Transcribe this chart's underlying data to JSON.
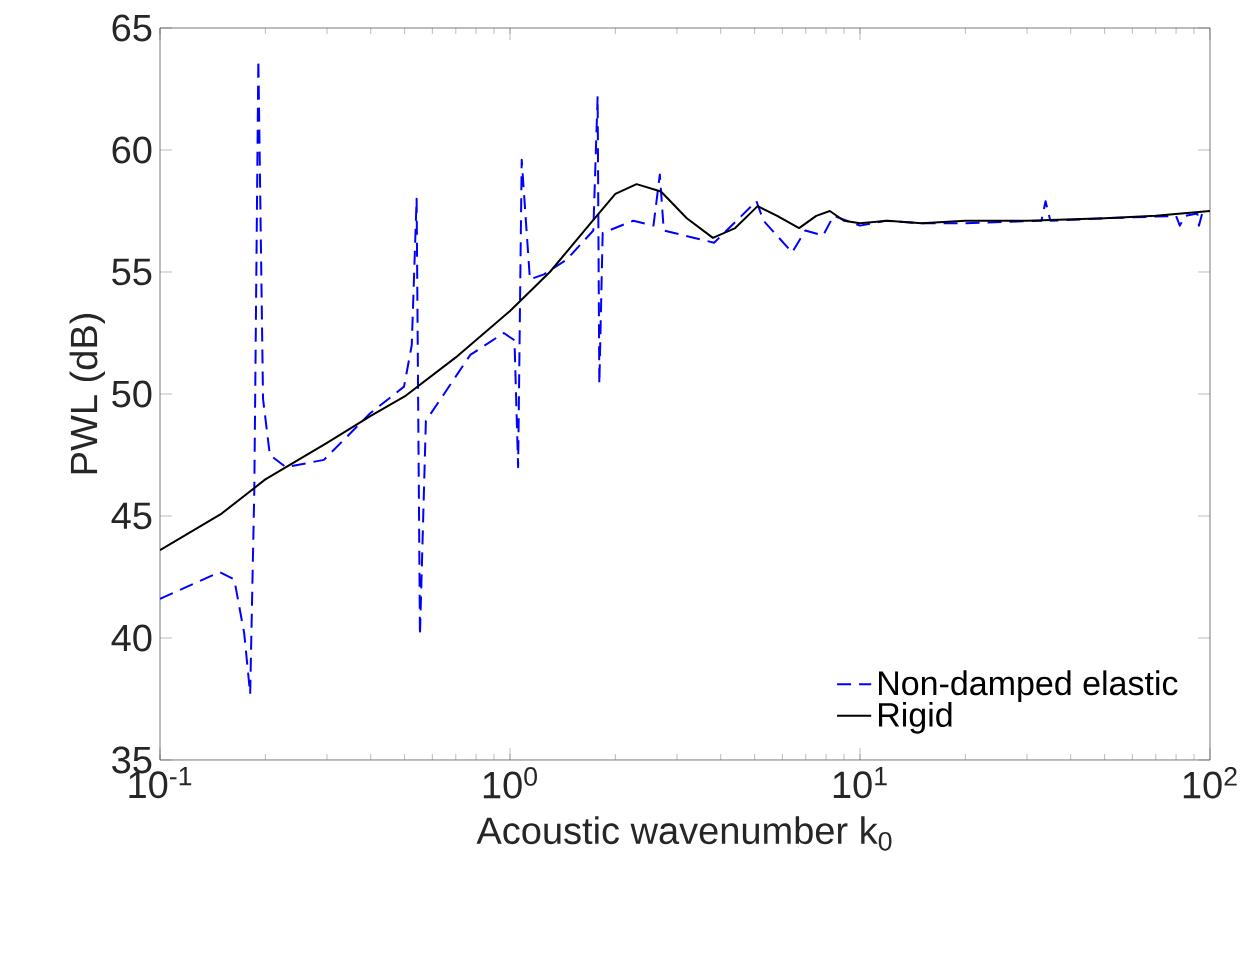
{
  "chart_data": {
    "type": "line",
    "xlabel": "Acoustic wavenumber k$_{0}$",
    "ylabel": "PWL (dB)",
    "log": "x",
    "xlim": [
      0.1,
      100
    ],
    "ylim": [
      35,
      65
    ],
    "xticks": [
      {
        "value": 0.1,
        "label": "10$^{-1}$"
      },
      {
        "value": 1,
        "label": "10$^{0}$"
      },
      {
        "value": 10,
        "label": "10$^{1}$"
      },
      {
        "value": 100,
        "label": "10$^{2}$"
      }
    ],
    "yticks": [
      35,
      40,
      45,
      50,
      55,
      60,
      65
    ],
    "grid": false,
    "legend": "bottom right",
    "marker": "none",
    "series": [
      {
        "name": "Non-damped elastic",
        "color": "#0000ff",
        "line_style": "dashed",
        "x": [
          0.1,
          0.148,
          0.163,
          0.174,
          0.181,
          0.186,
          0.191,
          0.197,
          0.206,
          0.229,
          0.294,
          0.398,
          0.498,
          0.524,
          0.541,
          0.553,
          0.575,
          0.648,
          0.77,
          0.96,
          1.03,
          1.055,
          1.08,
          1.14,
          1.25,
          1.45,
          1.73,
          1.78,
          1.8,
          1.84,
          2.25,
          2.57,
          2.68,
          2.75,
          3.83,
          5.06,
          5.3,
          6.4,
          6.98,
          7.85,
          8.4,
          10,
          11.8,
          15,
          20,
          33,
          33.9,
          35,
          50,
          80,
          82,
          85,
          92,
          93,
          95,
          100
        ],
        "values": [
          41.6,
          42.7,
          42.4,
          40.2,
          37.7,
          46.1,
          63.7,
          49.8,
          47.5,
          47.0,
          47.3,
          49.2,
          50.3,
          52.0,
          58.0,
          40.1,
          48.9,
          50.0,
          51.6,
          52.5,
          52.2,
          47.0,
          59.6,
          54.7,
          54.9,
          55.5,
          56.7,
          62.2,
          50.4,
          56.6,
          57.1,
          56.9,
          59.0,
          56.7,
          56.2,
          57.9,
          57.1,
          55.8,
          56.7,
          56.5,
          57.3,
          56.9,
          57.1,
          57.0,
          57.0,
          57.1,
          57.9,
          57.1,
          57.2,
          57.3,
          56.9,
          57.3,
          57.4,
          56.9,
          57.4,
          57.5
        ]
      },
      {
        "name": "Rigid",
        "color": "#000000",
        "line_style": "solid",
        "x": [
          0.1,
          0.15,
          0.2,
          0.3,
          0.4,
          0.5,
          0.7,
          1.0,
          1.3,
          1.7,
          2.0,
          2.3,
          2.7,
          3.2,
          3.8,
          4.4,
          5.1,
          5.8,
          6.7,
          7.5,
          8.2,
          9.0,
          10,
          12,
          15,
          20,
          30,
          50,
          70,
          100
        ],
        "values": [
          43.6,
          45.1,
          46.5,
          48.0,
          49.1,
          49.9,
          51.5,
          53.4,
          55.0,
          57.0,
          58.2,
          58.6,
          58.3,
          57.2,
          56.4,
          56.8,
          57.7,
          57.3,
          56.8,
          57.3,
          57.5,
          57.1,
          57.0,
          57.1,
          57.0,
          57.1,
          57.1,
          57.2,
          57.3,
          57.5
        ]
      }
    ]
  }
}
